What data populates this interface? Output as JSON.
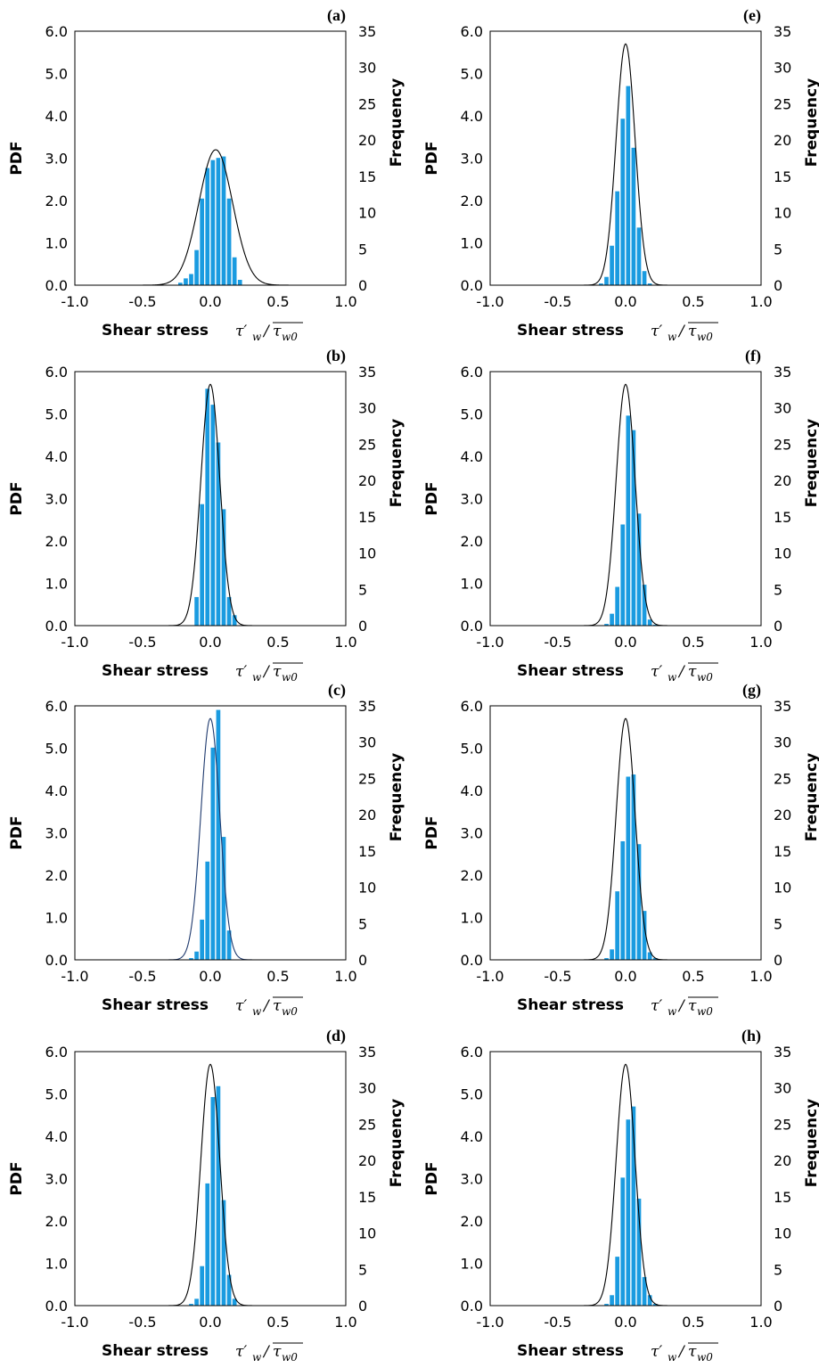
{
  "figure": {
    "colors": {
      "bar": "#1a9be0",
      "bar_edge": "#ffffff",
      "curve": "#000000",
      "curve_c": "#1f3a6e",
      "axis": "#000000"
    }
  },
  "chart_data": [
    {
      "id": "a",
      "type": "bar",
      "panel_label": "(a)",
      "xlabel": "Shear stress",
      "xunit_main": "τ′",
      "xunit_sub": "w",
      "xunit_den": "τ",
      "xunit_den_sub": "w0",
      "ylabel_left": "PDF",
      "ylabel_right": "Frequency",
      "xlim": [
        -1.0,
        1.0
      ],
      "ylim_left": [
        0,
        6.0
      ],
      "ylim_right": [
        0,
        35
      ],
      "xticks": [
        "-1.0",
        "-0.5",
        "0.0",
        "0.5",
        "1.0"
      ],
      "yticks_left": [
        "0.0",
        "1.0",
        "2.0",
        "3.0",
        "4.0",
        "5.0",
        "6.0"
      ],
      "yticks_right": [
        "0",
        "5",
        "10",
        "15",
        "20",
        "25",
        "30",
        "35"
      ],
      "pdf_curve": {
        "mean": 0.04,
        "peak": 3.2,
        "sigma": 0.125
      },
      "bin_width": 0.04,
      "bins": [
        -0.26,
        -0.22,
        -0.18,
        -0.14,
        -0.1,
        -0.06,
        -0.02,
        0.02,
        0.06,
        0.1,
        0.14,
        0.18,
        0.22,
        0.26
      ],
      "frequency": [
        0.1,
        0.4,
        1.0,
        1.6,
        4.9,
        12.0,
        16.2,
        17.3,
        17.6,
        17.8,
        12.0,
        3.9,
        0.8,
        0.1
      ]
    },
    {
      "id": "e",
      "type": "bar",
      "panel_label": "(e)",
      "xlabel": "Shear stress",
      "xunit_main": "τ′",
      "xunit_sub": "w",
      "xunit_den": "τ",
      "xunit_den_sub": "w0",
      "ylabel_left": "PDF",
      "ylabel_right": "Frequency",
      "xlim": [
        -1.0,
        1.0
      ],
      "ylim_left": [
        0,
        6.0
      ],
      "ylim_right": [
        0,
        35
      ],
      "xticks": [
        "-1.0",
        "-0.5",
        "0.0",
        "0.5",
        "1.0"
      ],
      "yticks_left": [
        "0.0",
        "1.0",
        "2.0",
        "3.0",
        "4.0",
        "5.0",
        "6.0"
      ],
      "yticks_right": [
        "0",
        "5",
        "10",
        "15",
        "20",
        "25",
        "30",
        "35"
      ],
      "pdf_curve": {
        "mean": 0.0,
        "peak": 5.7,
        "sigma": 0.07
      },
      "bin_width": 0.04,
      "bins": [
        -0.18,
        -0.14,
        -0.1,
        -0.06,
        -0.02,
        0.02,
        0.06,
        0.1,
        0.14,
        0.18
      ],
      "frequency": [
        0.3,
        1.2,
        5.5,
        13.0,
        23.0,
        27.5,
        19.0,
        8.0,
        2.0,
        0.3
      ]
    },
    {
      "id": "b",
      "type": "bar",
      "panel_label": "(b)",
      "xlabel": "Shear stress",
      "xunit_main": "τ′",
      "xunit_sub": "w",
      "xunit_den": "τ",
      "xunit_den_sub": "w0",
      "ylabel_left": "PDF",
      "ylabel_right": "Frequency",
      "xlim": [
        -1.0,
        1.0
      ],
      "ylim_left": [
        0,
        6.0
      ],
      "ylim_right": [
        0,
        35
      ],
      "xticks": [
        "-1.0",
        "-0.5",
        "0.0",
        "0.5",
        "1.0"
      ],
      "yticks_left": [
        "0.0",
        "1.0",
        "2.0",
        "3.0",
        "4.0",
        "5.0",
        "6.0"
      ],
      "yticks_right": [
        "0",
        "5",
        "10",
        "15",
        "20",
        "25",
        "30",
        "35"
      ],
      "pdf_curve": {
        "mean": 0.0,
        "peak": 5.7,
        "sigma": 0.07
      },
      "bin_width": 0.04,
      "bins": [
        -0.1,
        -0.06,
        -0.02,
        0.02,
        0.06,
        0.1,
        0.14,
        0.18
      ],
      "frequency": [
        4.0,
        16.8,
        32.7,
        30.5,
        25.3,
        16.1,
        4.0,
        1.5
      ]
    },
    {
      "id": "f",
      "type": "bar",
      "panel_label": "(f)",
      "xlabel": "Shear stress",
      "xunit_main": "τ′",
      "xunit_sub": "w",
      "xunit_den": "τ",
      "xunit_den_sub": "w0",
      "ylabel_left": "PDF",
      "ylabel_right": "Frequency",
      "xlim": [
        -1.0,
        1.0
      ],
      "ylim_left": [
        0,
        6.0
      ],
      "ylim_right": [
        0,
        35
      ],
      "xticks": [
        "-1.0",
        "-0.5",
        "0.0",
        "0.5",
        "1.0"
      ],
      "yticks_left": [
        "0.0",
        "1.0",
        "2.0",
        "3.0",
        "4.0",
        "5.0",
        "6.0"
      ],
      "yticks_right": [
        "0",
        "5",
        "10",
        "15",
        "20",
        "25",
        "30",
        "35"
      ],
      "pdf_curve": {
        "mean": 0.0,
        "peak": 5.7,
        "sigma": 0.07
      },
      "bin_width": 0.04,
      "bins": [
        -0.14,
        -0.1,
        -0.06,
        -0.02,
        0.02,
        0.06,
        0.1,
        0.14,
        0.18,
        0.22
      ],
      "frequency": [
        0.3,
        1.7,
        5.4,
        14.0,
        29.0,
        27.0,
        15.5,
        5.7,
        0.9,
        0.2
      ]
    },
    {
      "id": "c",
      "type": "bar",
      "panel_label": "(c)",
      "xlabel": "Shear stress",
      "xunit_main": "τ′",
      "xunit_sub": "w",
      "xunit_den": "τ",
      "xunit_den_sub": "w0",
      "ylabel_left": "PDF",
      "ylabel_right": "Frequency",
      "xlim": [
        -1.0,
        1.0
      ],
      "ylim_left": [
        0,
        6.0
      ],
      "ylim_right": [
        0,
        35
      ],
      "xticks": [
        "-1.0",
        "-0.5",
        "0.0",
        "0.5",
        "1.0"
      ],
      "yticks_left": [
        "0.0",
        "1.0",
        "2.0",
        "3.0",
        "4.0",
        "5.0",
        "6.0"
      ],
      "yticks_right": [
        "0",
        "5",
        "10",
        "15",
        "20",
        "25",
        "30",
        "35"
      ],
      "pdf_curve": {
        "mean": 0.0,
        "peak": 5.7,
        "sigma": 0.07
      },
      "bin_width": 0.04,
      "bins": [
        -0.14,
        -0.1,
        -0.06,
        -0.02,
        0.02,
        0.06,
        0.1,
        0.14
      ],
      "frequency": [
        0.3,
        1.2,
        5.6,
        13.6,
        29.3,
        34.5,
        17.0,
        4.1
      ]
    },
    {
      "id": "g",
      "type": "bar",
      "panel_label": "(g)",
      "xlabel": "Shear stress",
      "xunit_main": "τ′",
      "xunit_sub": "w",
      "xunit_den": "τ",
      "xunit_den_sub": "w0",
      "ylabel_left": "PDF",
      "ylabel_right": "Frequency",
      "xlim": [
        -1.0,
        1.0
      ],
      "ylim_left": [
        0,
        6.0
      ],
      "ylim_right": [
        0,
        35
      ],
      "xticks": [
        "-1.0",
        "-0.5",
        "0.0",
        "0.5",
        "1.0"
      ],
      "yticks_left": [
        "0.0",
        "1.0",
        "2.0",
        "3.0",
        "4.0",
        "5.0",
        "6.0"
      ],
      "yticks_right": [
        "0",
        "5",
        "10",
        "15",
        "20",
        "25",
        "30",
        "35"
      ],
      "pdf_curve": {
        "mean": 0.0,
        "peak": 5.7,
        "sigma": 0.07
      },
      "bin_width": 0.04,
      "bins": [
        -0.14,
        -0.1,
        -0.06,
        -0.02,
        0.02,
        0.06,
        0.1,
        0.14,
        0.18,
        0.22
      ],
      "frequency": [
        0.3,
        1.5,
        9.5,
        16.4,
        25.3,
        25.6,
        16.0,
        6.8,
        1.1,
        0.3
      ]
    },
    {
      "id": "d",
      "type": "bar",
      "panel_label": "(d)",
      "xlabel": "Shear stress",
      "xunit_main": "τ′",
      "xunit_sub": "w",
      "xunit_den": "τ",
      "xunit_den_sub": "w0",
      "ylabel_left": "PDF",
      "ylabel_right": "Frequency",
      "xlim": [
        -1.0,
        1.0
      ],
      "ylim_left": [
        0,
        6.0
      ],
      "ylim_right": [
        0,
        35
      ],
      "xticks": [
        "-1.0",
        "-0.5",
        "0.0",
        "0.5",
        "1.0"
      ],
      "yticks_left": [
        "0.0",
        "1.0",
        "2.0",
        "3.0",
        "4.0",
        "5.0",
        "6.0"
      ],
      "yticks_right": [
        "0",
        "5",
        "10",
        "15",
        "20",
        "25",
        "30",
        "35"
      ],
      "pdf_curve": {
        "mean": 0.0,
        "peak": 5.7,
        "sigma": 0.07
      },
      "bin_width": 0.04,
      "bins": [
        -0.14,
        -0.1,
        -0.06,
        -0.02,
        0.02,
        0.06,
        0.1,
        0.14,
        0.18
      ],
      "frequency": [
        0.3,
        1.0,
        5.5,
        16.9,
        28.8,
        30.3,
        14.6,
        4.3,
        1.0
      ]
    },
    {
      "id": "h",
      "type": "bar",
      "panel_label": "(h)",
      "xlabel": "Shear stress",
      "xunit_main": "τ′",
      "xunit_sub": "w",
      "xunit_den": "τ",
      "xunit_den_sub": "w0",
      "ylabel_left": "PDF",
      "ylabel_right": "Frequency",
      "xlim": [
        -1.0,
        1.0
      ],
      "ylim_left": [
        0,
        6.0
      ],
      "ylim_right": [
        0,
        35
      ],
      "xticks": [
        "-1.0",
        "-0.5",
        "0.0",
        "0.5",
        "1.0"
      ],
      "yticks_left": [
        "0.0",
        "1.0",
        "2.0",
        "3.0",
        "4.0",
        "5.0",
        "6.0"
      ],
      "yticks_right": [
        "0",
        "5",
        "10",
        "15",
        "20",
        "25",
        "30",
        "35"
      ],
      "pdf_curve": {
        "mean": 0.0,
        "peak": 5.7,
        "sigma": 0.07
      },
      "bin_width": 0.04,
      "bins": [
        -0.14,
        -0.1,
        -0.06,
        -0.02,
        0.02,
        0.06,
        0.1,
        0.14,
        0.18,
        0.22
      ],
      "frequency": [
        0.3,
        1.5,
        6.8,
        17.7,
        25.7,
        27.5,
        14.8,
        4.0,
        1.5,
        0.3
      ]
    }
  ]
}
